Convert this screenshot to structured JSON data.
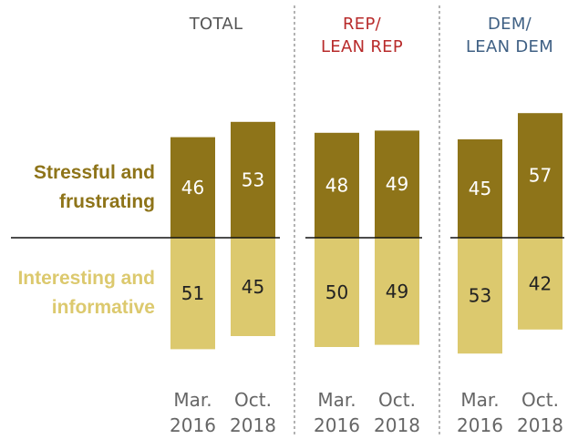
{
  "chart_data": {
    "type": "bar",
    "orientation": "diverging-vertical",
    "row_labels": {
      "top": [
        "Stressful and",
        "frustrating"
      ],
      "bottom": [
        "Interesting and",
        "informative"
      ]
    },
    "groups": [
      {
        "title": [
          "TOTAL"
        ],
        "title_color": "#555555",
        "categories": [
          [
            "Mar.",
            "2016"
          ],
          [
            "Oct.",
            "2018"
          ]
        ],
        "stressful_frustrating": [
          46,
          53
        ],
        "interesting_informative": [
          51,
          45
        ]
      },
      {
        "title": [
          "REP/",
          "LEAN REP"
        ],
        "title_color": "#B82B2B",
        "categories": [
          [
            "Mar.",
            "2016"
          ],
          [
            "Oct.",
            "2018"
          ]
        ],
        "stressful_frustrating": [
          48,
          49
        ],
        "interesting_informative": [
          50,
          49
        ]
      },
      {
        "title": [
          "DEM/",
          "LEAN DEM"
        ],
        "title_color": "#3F6084",
        "categories": [
          [
            "Mar.",
            "2016"
          ],
          [
            "Oct.",
            "2018"
          ]
        ],
        "stressful_frustrating": [
          45,
          57
        ],
        "interesting_informative": [
          53,
          42
        ]
      }
    ],
    "colors": {
      "stressful_frustrating": "#8E7419",
      "interesting_informative": "#DCC96E",
      "row_label_top": "#8E7419",
      "row_label_bottom": "#DCC96E"
    }
  }
}
